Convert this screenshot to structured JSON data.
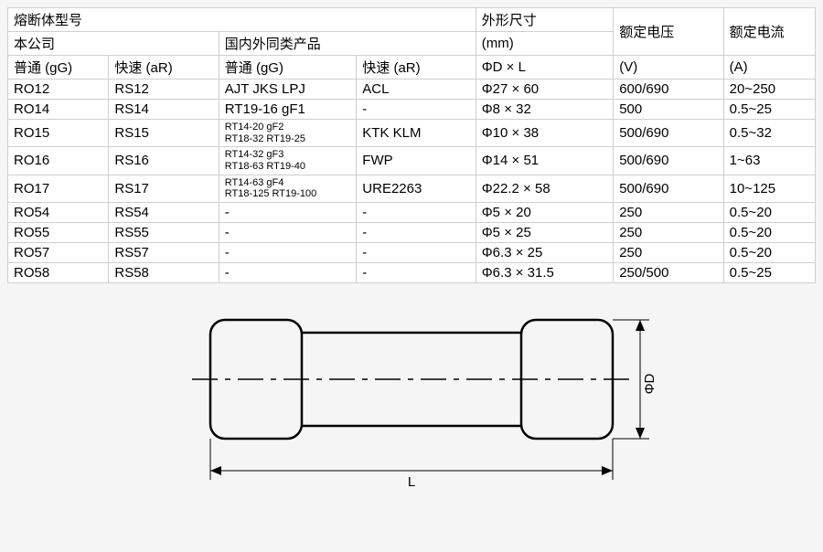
{
  "table": {
    "header": {
      "model_group": "熔断体型号",
      "dims": "外形尺寸",
      "dims_unit": "(mm)",
      "voltage": "额定电压",
      "current": "额定电流",
      "our_company": "本公司",
      "similar": "国内外同类产品",
      "std_gg": "普通 (gG)",
      "fast_ar": "快速 (aR)",
      "dxl": "ΦD × L",
      "v": "(V)",
      "a": "(A)"
    },
    "rows": [
      {
        "gg": "RO12",
        "ar": "RS12",
        "sim_gg": "AJT JKS LPJ",
        "sim_ar": "ACL",
        "d": "Φ27 × 60",
        "v": "600/690",
        "a": "20~250",
        "small": false
      },
      {
        "gg": "RO14",
        "ar": "RS14",
        "sim_gg": "RT19-16 gF1",
        "sim_ar": "-",
        "d": "Φ8 × 32",
        "v": "500",
        "a": "0.5~25",
        "small": false
      },
      {
        "gg": "RO15",
        "ar": "RS15",
        "sim_gg": "RT14-20 gF2\nRT18-32 RT19-25",
        "sim_ar": "KTK KLM",
        "d": "Φ10 × 38",
        "v": "500/690",
        "a": "0.5~32",
        "small": true
      },
      {
        "gg": "RO16",
        "ar": "RS16",
        "sim_gg": "RT14-32 gF3\nRT18-63 RT19-40",
        "sim_ar": "FWP",
        "d": "Φ14 × 51",
        "v": "500/690",
        "a": "1~63",
        "small": true
      },
      {
        "gg": "RO17",
        "ar": "RS17",
        "sim_gg": "RT14-63 gF4\nRT18-125 RT19-100",
        "sim_ar": "URE2263",
        "d": "Φ22.2 × 58",
        "v": "500/690",
        "a": "10~125",
        "small": true
      },
      {
        "gg": "RO54",
        "ar": "RS54",
        "sim_gg": "-",
        "sim_ar": "-",
        "d": "Φ5 × 20",
        "v": "250",
        "a": "0.5~20",
        "small": false
      },
      {
        "gg": "RO55",
        "ar": "RS55",
        "sim_gg": "-",
        "sim_ar": "-",
        "d": "Φ5 × 25",
        "v": "250",
        "a": "0.5~20",
        "small": false
      },
      {
        "gg": "RO57",
        "ar": "RS57",
        "sim_gg": "-",
        "sim_ar": "-",
        "d": "Φ6.3 × 25",
        "v": "250",
        "a": "0.5~20",
        "small": false
      },
      {
        "gg": "RO58",
        "ar": "RS58",
        "sim_gg": "-",
        "sim_ar": "-",
        "d": "Φ6.3 × 31.5",
        "v": "250/500",
        "a": "0.5~25",
        "small": false
      }
    ]
  },
  "diagram": {
    "label_L": "L",
    "label_D": "ΦD",
    "colors": {
      "stroke": "#000000",
      "bg": "#f5f5f5"
    }
  }
}
